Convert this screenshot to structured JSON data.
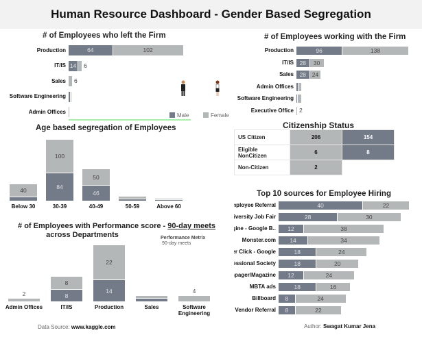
{
  "header": {
    "title": "Human Resource Dashboard - Gender Based Segregation"
  },
  "colors": {
    "male": "#747b88",
    "female": "#b4b7b8"
  },
  "left_firm": {
    "title": "# of Employees who left the Firm",
    "legend": {
      "male": "Male",
      "female": "Female"
    },
    "icons": [
      "male-person-icon",
      "female-person-icon"
    ],
    "rows": [
      {
        "label": "Production",
        "male": 64,
        "female": 102
      },
      {
        "label": "IT/IS",
        "male": 14,
        "female": 6
      },
      {
        "label": "Sales",
        "male": 0,
        "female": 6
      },
      {
        "label": "Software Engineering",
        "male": 3,
        "female": 1
      },
      {
        "label": "Admin Offices",
        "male": 0,
        "female": 2
      }
    ]
  },
  "working_firm": {
    "title": "# of Employees working with the Firm",
    "rows": [
      {
        "label": "Production",
        "male": 96,
        "female": 138
      },
      {
        "label": "IT/IS",
        "male": 28,
        "female": 30
      },
      {
        "label": "Sales",
        "male": 28,
        "female": 24
      },
      {
        "label": "Admin Offices",
        "male": 4,
        "female": 8
      },
      {
        "label": "Software Engineering",
        "male": 3,
        "female": 8
      },
      {
        "label": "Executive Office",
        "male": 0,
        "female": 2
      }
    ]
  },
  "citizenship": {
    "title": "Citizenship Status",
    "rows": [
      {
        "label": "US Citizen",
        "female": 206,
        "male": 154
      },
      {
        "label": "Eligible NonCitizen",
        "female": 6,
        "male": 8
      },
      {
        "label": "Non-Citizen",
        "female": 2,
        "male": null
      }
    ]
  },
  "age": {
    "title": "Age based segregation of Employees",
    "cols": [
      {
        "label": "Below 30",
        "male": 12,
        "female": 40
      },
      {
        "label": "30-39",
        "male": 84,
        "female": 100
      },
      {
        "label": "40-49",
        "male": 46,
        "female": 50
      },
      {
        "label": "50-59",
        "male": 6,
        "female": 9
      },
      {
        "label": "Above 60",
        "male": 1,
        "female": 2
      }
    ]
  },
  "performance": {
    "title_pre": "# of Employees with Performance score - ",
    "title_em": "90-day meets",
    "title_post": " across",
    "title_line2": "Departments",
    "metric_label": "Performance Metrix",
    "metric_value": "90-day meets",
    "cols": [
      {
        "label": "Admin Offices",
        "male": 0,
        "female": 2
      },
      {
        "label": "IT/IS",
        "male": 8,
        "female": 8
      },
      {
        "label": "Production",
        "male": 14,
        "female": 22
      },
      {
        "label": "Sales",
        "male": 2,
        "female": 2
      },
      {
        "label": "Software Engineering",
        "male": 0,
        "female": 4
      }
    ]
  },
  "hiring": {
    "title": "Top 10 sources for Employee Hiring",
    "rows": [
      {
        "label": "Employee Referral",
        "male": 40,
        "female": 22
      },
      {
        "label": "Diversity Job Fair",
        "male": 28,
        "female": 30
      },
      {
        "label": "earch Engine - Google B..",
        "male": 12,
        "female": 38
      },
      {
        "label": "Monster.com",
        "male": 14,
        "female": 34
      },
      {
        "label": "Pay Per Click - Google",
        "male": 18,
        "female": 24
      },
      {
        "label": "Professional Society",
        "male": 18,
        "female": 20
      },
      {
        "label": "Newspager/Magazine",
        "male": 12,
        "female": 24
      },
      {
        "label": "MBTA ads",
        "male": 18,
        "female": 16
      },
      {
        "label": "Billboard",
        "male": 8,
        "female": 24
      },
      {
        "label": "Vendor Referral",
        "male": 8,
        "female": 22
      }
    ]
  },
  "footer": {
    "source_label": "Data Source: ",
    "source_value": "www.kaggle.com",
    "author_label": "Author: ",
    "author_value": "Swagat Kumar Jena"
  }
}
